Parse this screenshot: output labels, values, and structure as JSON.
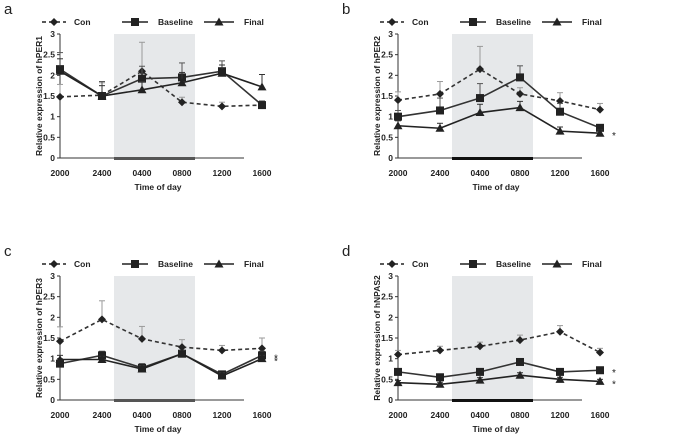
{
  "figure": {
    "legend_labels": [
      "Con",
      "Baseline",
      "Final"
    ],
    "x_categories": [
      "2000",
      "2400",
      "0400",
      "0800",
      "1200",
      "1600"
    ],
    "xlabel": "Time of day",
    "y_ticks": [
      "0",
      "0.5",
      "1",
      "1.5",
      "2",
      "2.5",
      "3"
    ]
  },
  "chart_data": [
    {
      "panel": "a",
      "type": "line",
      "ylabel": "Relative expression of hPER1",
      "x": [
        "2000",
        "2400",
        "0400",
        "0800",
        "1200",
        "1600"
      ],
      "ylim": [
        0,
        3
      ],
      "shaded_interval": [
        "2400",
        "0800"
      ],
      "series": [
        {
          "name": "Con",
          "line": "dashed",
          "marker": "diamond",
          "values": [
            1.48,
            1.52,
            2.1,
            1.35,
            1.25,
            1.28
          ],
          "error": [
            0.3,
            0.3,
            0.7,
            0.12,
            0.1,
            0.1
          ]
        },
        {
          "name": "Baseline",
          "line": "solid",
          "marker": "square",
          "values": [
            2.15,
            1.5,
            1.92,
            1.95,
            2.1,
            1.28
          ],
          "error": [
            0.4,
            0.35,
            0.3,
            0.35,
            0.25,
            0.1
          ]
        },
        {
          "name": "Final",
          "line": "solid",
          "marker": "triangle",
          "values": [
            2.1,
            1.5,
            1.65,
            1.82,
            2.05,
            1.72
          ],
          "error": [
            0.3,
            0.25,
            0.2,
            0.25,
            0.2,
            0.3
          ]
        }
      ],
      "annotations": []
    },
    {
      "panel": "b",
      "type": "line",
      "ylabel": "Relative expression of hPER2",
      "x": [
        "2000",
        "2400",
        "0400",
        "0800",
        "1200",
        "1600"
      ],
      "ylim": [
        0,
        3
      ],
      "shaded_interval": [
        "2400",
        "0800"
      ],
      "series": [
        {
          "name": "Con",
          "line": "dashed",
          "marker": "diamond",
          "values": [
            1.4,
            1.55,
            2.15,
            1.55,
            1.38,
            1.17
          ],
          "error": [
            0.2,
            0.3,
            0.55,
            0.15,
            0.2,
            0.15
          ]
        },
        {
          "name": "Baseline",
          "line": "solid",
          "marker": "square",
          "values": [
            1.0,
            1.15,
            1.45,
            1.95,
            1.12,
            0.73
          ],
          "error": [
            0.15,
            0.3,
            0.35,
            0.28,
            0.2,
            0.08
          ]
        },
        {
          "name": "Final",
          "line": "solid",
          "marker": "triangle",
          "values": [
            0.78,
            0.72,
            1.1,
            1.22,
            0.65,
            0.6
          ],
          "error": [
            0.12,
            0.12,
            0.2,
            0.15,
            0.1,
            0.08
          ]
        }
      ],
      "annotations": [
        "*"
      ]
    },
    {
      "panel": "c",
      "type": "line",
      "ylabel": "Relative expression of hPER3",
      "x": [
        "2000",
        "2400",
        "0400",
        "0800",
        "1200",
        "1600"
      ],
      "ylim": [
        0,
        3
      ],
      "shaded_interval": [
        "2400",
        "0800"
      ],
      "series": [
        {
          "name": "Con",
          "line": "dashed",
          "marker": "diamond",
          "values": [
            1.42,
            1.95,
            1.48,
            1.28,
            1.2,
            1.25
          ],
          "error": [
            0.35,
            0.45,
            0.3,
            0.18,
            0.12,
            0.25
          ]
        },
        {
          "name": "Baseline",
          "line": "solid",
          "marker": "square",
          "values": [
            0.88,
            1.08,
            0.78,
            1.12,
            0.62,
            1.08
          ],
          "error": [
            0.12,
            0.1,
            0.1,
            0.08,
            0.08,
            0.1
          ]
        },
        {
          "name": "Final",
          "line": "solid",
          "marker": "triangle",
          "values": [
            0.98,
            0.98,
            0.75,
            1.12,
            0.58,
            1.0
          ],
          "error": [
            0.1,
            0.08,
            0.08,
            0.08,
            0.08,
            0.08
          ]
        }
      ],
      "annotations": [
        "*",
        "*"
      ]
    },
    {
      "panel": "d",
      "type": "line",
      "ylabel": "Relative expression of hNPAS2",
      "x": [
        "2000",
        "2400",
        "0400",
        "0800",
        "1200",
        "1600"
      ],
      "ylim": [
        0,
        3
      ],
      "shaded_interval": [
        "2400",
        "0800"
      ],
      "series": [
        {
          "name": "Con",
          "line": "dashed",
          "marker": "diamond",
          "values": [
            1.1,
            1.2,
            1.3,
            1.45,
            1.65,
            1.15
          ],
          "error": [
            0.1,
            0.1,
            0.1,
            0.12,
            0.15,
            0.1
          ]
        },
        {
          "name": "Baseline",
          "line": "solid",
          "marker": "square",
          "values": [
            0.68,
            0.55,
            0.68,
            0.92,
            0.68,
            0.72
          ],
          "error": [
            0.05,
            0.06,
            0.06,
            0.08,
            0.06,
            0.05
          ]
        },
        {
          "name": "Final",
          "line": "solid",
          "marker": "triangle",
          "values": [
            0.42,
            0.38,
            0.48,
            0.6,
            0.5,
            0.45
          ],
          "error": [
            0.05,
            0.05,
            0.06,
            0.06,
            0.05,
            0.05
          ]
        }
      ],
      "annotations": [
        "*",
        "*"
      ]
    }
  ]
}
